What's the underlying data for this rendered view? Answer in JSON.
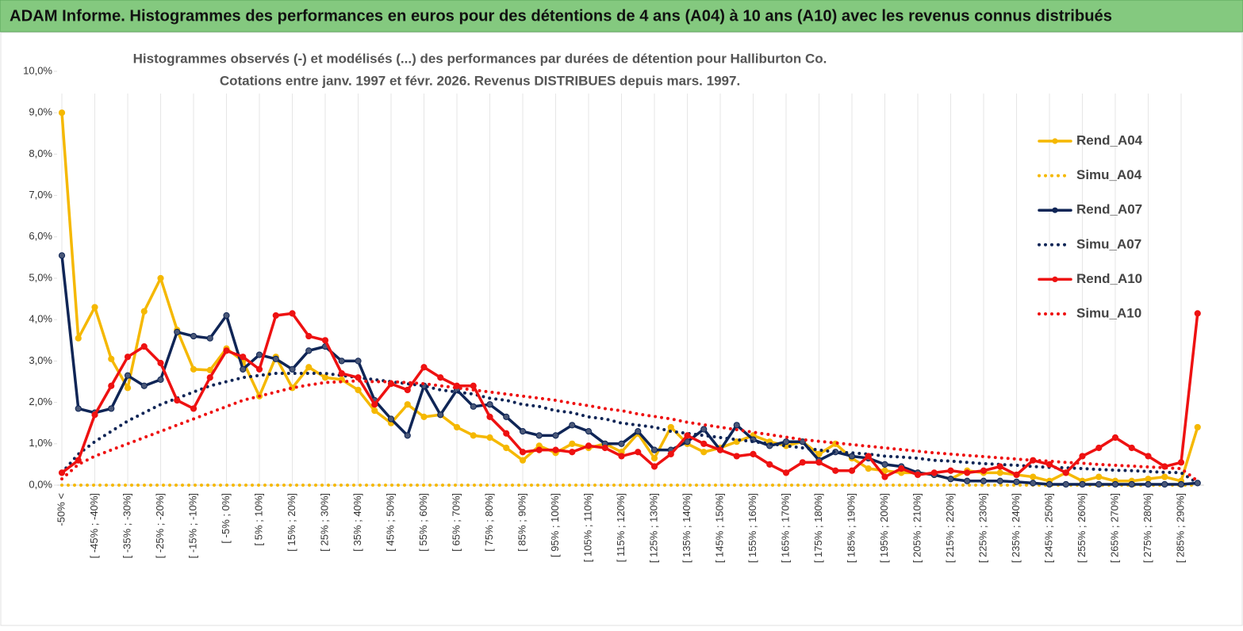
{
  "header": {
    "title": "ADAM Informe. Histogrammes des performances en euros pour des détentions de 4 ans (A04) à 10 ans (A10) avec les revenus connus distribués"
  },
  "chart_data": {
    "type": "line",
    "title": "Histogrammes observés (-) et modélisés (...)  des performances par durées de détention pour Halliburton Co.",
    "subtitle": "Cotations entre janv. 1997 et févr. 2026. Revenus DISTRIBUES depuis mars. 1997.",
    "categories": [
      "-50% <",
      null,
      "[ -45% ; -40%]",
      null,
      "[ -35% ; -30%]",
      null,
      "[ -25% ; -20%]",
      null,
      "[ -15% ; -10%]",
      null,
      "[ -5% ; 0%]",
      null,
      "[ 5% ; 10%]",
      null,
      "[ 15% ; 20%]",
      null,
      "[ 25% ; 30%]",
      null,
      "[ 35% ; 40%]",
      null,
      "[ 45% ; 50%]",
      null,
      "[ 55% ; 60%]",
      null,
      "[ 65% ; 70%]",
      null,
      "[ 75% ; 80%]",
      null,
      "[ 85% ; 90%]",
      null,
      "[ 95% ; 100%]",
      null,
      "[ 105% ; 110%]",
      null,
      "[ 115% ; 120%]",
      null,
      "[ 125% ; 130%]",
      null,
      "[ 135% ; 140%]",
      null,
      "[ 145% ; 150%]",
      null,
      "[ 155% ; 160%]",
      null,
      "[ 165% ; 170%]",
      null,
      "[ 175% ; 180%]",
      null,
      "[ 185% ; 190%]",
      null,
      "[ 195% ; 200%]",
      null,
      "[ 205% ; 210%]",
      null,
      "[ 215% ; 220%]",
      null,
      "[ 225% ; 230%]",
      null,
      "[ 235% ; 240%]",
      null,
      "[ 245% ; 250%]",
      null,
      "[ 255% ; 260%]",
      null,
      "[ 265% ; 270%]",
      null,
      "[ 275% ; 280%]",
      null,
      "[ 285% ; 290%]",
      null
    ],
    "ylim": [
      0,
      10
    ],
    "yticks": [
      {
        "value": 0,
        "label": "0,0%"
      },
      {
        "value": 1,
        "label": "1,0%"
      },
      {
        "value": 2,
        "label": "2,0%"
      },
      {
        "value": 3,
        "label": "3,0%"
      },
      {
        "value": 4,
        "label": "4,0%"
      },
      {
        "value": 5,
        "label": "5,0%"
      },
      {
        "value": 6,
        "label": "6,0%"
      },
      {
        "value": 7,
        "label": "7,0%"
      },
      {
        "value": 8,
        "label": "8,0%"
      },
      {
        "value": 9,
        "label": "9,0%"
      },
      {
        "value": 10,
        "label": "10,0%"
      }
    ],
    "legend": "right",
    "series": [
      {
        "name": "Rend_A04",
        "color": "#f5b800",
        "line_style": "solid",
        "markers": true,
        "values": [
          9.0,
          3.55,
          4.3,
          3.05,
          2.35,
          4.2,
          5.0,
          3.75,
          2.8,
          2.78,
          3.3,
          3.0,
          2.15,
          3.1,
          2.35,
          2.85,
          2.6,
          2.55,
          2.3,
          1.8,
          1.5,
          1.95,
          1.65,
          1.7,
          1.4,
          1.2,
          1.15,
          0.9,
          0.6,
          0.95,
          0.78,
          1.0,
          0.9,
          1.0,
          0.8,
          1.25,
          0.65,
          1.4,
          1.0,
          0.8,
          0.9,
          1.05,
          1.2,
          1.05,
          0.95,
          1.05,
          0.75,
          1.0,
          0.65,
          0.4,
          0.35,
          0.3,
          0.3,
          0.25,
          0.15,
          0.35,
          0.3,
          0.3,
          0.25,
          0.2,
          0.1,
          0.3,
          0.1,
          0.2,
          0.1,
          0.1,
          0.15,
          0.2,
          0.1,
          1.4
        ]
      },
      {
        "name": "Simu_A04",
        "color": "#f5b800",
        "line_style": "dotted",
        "markers": false,
        "values": [
          0,
          0,
          0,
          0,
          0,
          0,
          0,
          0,
          0,
          0,
          0,
          0,
          0,
          0,
          0,
          0,
          0,
          0,
          0,
          0,
          0,
          0,
          0,
          0,
          0,
          0,
          0,
          0,
          0,
          0,
          0,
          0,
          0,
          0,
          0,
          0,
          0,
          0,
          0,
          0,
          0,
          0,
          0,
          0,
          0,
          0,
          0,
          0,
          0,
          0,
          0,
          0,
          0,
          0,
          0,
          0,
          0,
          0,
          0,
          0,
          0,
          0,
          0,
          0,
          0,
          0,
          0,
          0,
          0,
          0
        ]
      },
      {
        "name": "Rend_A07",
        "color": "#0f2556",
        "line_style": "solid",
        "markers": true,
        "values": [
          5.55,
          1.85,
          1.75,
          1.85,
          2.65,
          2.4,
          2.55,
          3.7,
          3.6,
          3.55,
          4.1,
          2.8,
          3.15,
          3.05,
          2.8,
          3.25,
          3.35,
          3.0,
          3.0,
          2.05,
          1.6,
          1.2,
          2.4,
          1.7,
          2.3,
          1.9,
          1.95,
          1.65,
          1.3,
          1.2,
          1.2,
          1.45,
          1.3,
          1.0,
          1.0,
          1.3,
          0.85,
          0.85,
          1.05,
          1.35,
          0.85,
          1.45,
          1.1,
          0.95,
          1.05,
          1.05,
          0.6,
          0.8,
          0.7,
          0.65,
          0.5,
          0.45,
          0.3,
          0.25,
          0.15,
          0.1,
          0.1,
          0.1,
          0.08,
          0.05,
          0.02,
          0.02,
          0.02,
          0.02,
          0.02,
          0.02,
          0.02,
          0.02,
          0.02,
          0.05
        ]
      },
      {
        "name": "Simu_A07",
        "color": "#0f2556",
        "line_style": "dotted",
        "markers": false,
        "values": [
          0.3,
          0.75,
          1.05,
          1.3,
          1.55,
          1.75,
          1.95,
          2.1,
          2.25,
          2.4,
          2.5,
          2.6,
          2.65,
          2.7,
          2.7,
          2.7,
          2.7,
          2.65,
          2.6,
          2.55,
          2.5,
          2.45,
          2.4,
          2.3,
          2.25,
          2.2,
          2.1,
          2.05,
          1.95,
          1.9,
          1.8,
          1.75,
          1.65,
          1.6,
          1.5,
          1.45,
          1.4,
          1.3,
          1.25,
          1.2,
          1.15,
          1.1,
          1.05,
          1.0,
          0.95,
          0.9,
          0.85,
          0.8,
          0.78,
          0.75,
          0.7,
          0.68,
          0.65,
          0.6,
          0.58,
          0.55,
          0.52,
          0.5,
          0.48,
          0.45,
          0.43,
          0.42,
          0.4,
          0.38,
          0.36,
          0.35,
          0.33,
          0.31,
          0.3,
          0.05
        ]
      },
      {
        "name": "Rend_A10",
        "color": "#ee1111",
        "line_style": "solid",
        "markers": true,
        "values": [
          0.3,
          0.6,
          1.7,
          2.4,
          3.1,
          3.35,
          2.95,
          2.05,
          1.85,
          2.6,
          3.25,
          3.1,
          2.8,
          4.1,
          4.15,
          3.6,
          3.5,
          2.7,
          2.6,
          1.95,
          2.45,
          2.3,
          2.85,
          2.6,
          2.4,
          2.4,
          1.65,
          1.25,
          0.8,
          0.85,
          0.85,
          0.8,
          0.95,
          0.9,
          0.7,
          0.8,
          0.45,
          0.75,
          1.2,
          1.0,
          0.85,
          0.7,
          0.75,
          0.5,
          0.3,
          0.55,
          0.55,
          0.35,
          0.35,
          0.7,
          0.2,
          0.4,
          0.25,
          0.3,
          0.35,
          0.3,
          0.35,
          0.45,
          0.25,
          0.6,
          0.5,
          0.3,
          0.7,
          0.9,
          1.15,
          0.9,
          0.7,
          0.45,
          0.55,
          4.15
        ]
      },
      {
        "name": "Simu_A10",
        "color": "#ee1111",
        "line_style": "dotted",
        "markers": false,
        "values": [
          0.15,
          0.5,
          0.7,
          0.85,
          1.0,
          1.15,
          1.3,
          1.45,
          1.6,
          1.75,
          1.9,
          2.05,
          2.15,
          2.25,
          2.35,
          2.42,
          2.48,
          2.5,
          2.52,
          2.5,
          2.5,
          2.48,
          2.45,
          2.4,
          2.35,
          2.3,
          2.25,
          2.2,
          2.15,
          2.1,
          2.05,
          1.98,
          1.92,
          1.85,
          1.8,
          1.72,
          1.66,
          1.6,
          1.52,
          1.46,
          1.4,
          1.34,
          1.28,
          1.22,
          1.16,
          1.1,
          1.06,
          1.02,
          0.98,
          0.94,
          0.9,
          0.86,
          0.82,
          0.78,
          0.75,
          0.72,
          0.69,
          0.66,
          0.63,
          0.6,
          0.58,
          0.55,
          0.53,
          0.5,
          0.48,
          0.46,
          0.44,
          0.42,
          0.4,
          0.1
        ]
      }
    ]
  }
}
